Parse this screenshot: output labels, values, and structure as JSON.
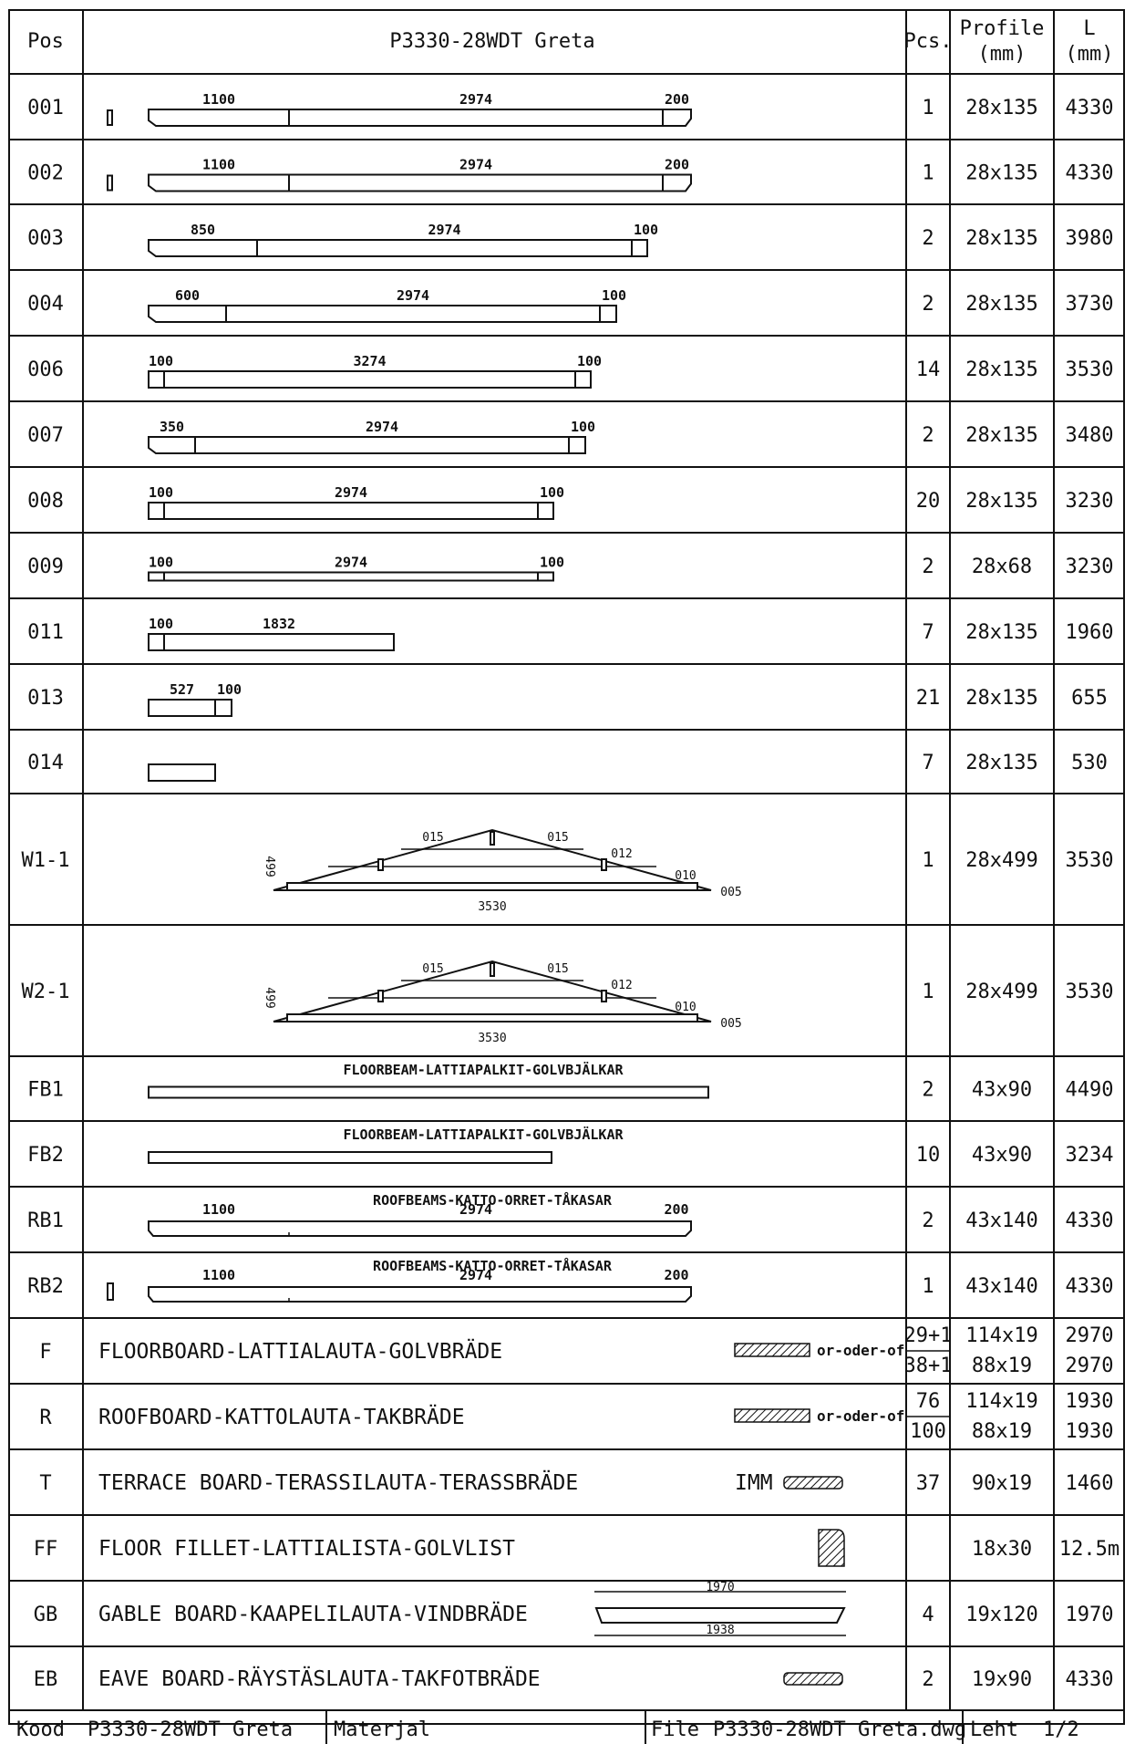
{
  "header": {
    "pos": "Pos",
    "title": "P3330-28WDT Greta",
    "pcs": "Pcs.",
    "profile_line1": "Profile",
    "profile_line2": "(mm)",
    "length_line1": "L",
    "length_line2": "(mm)"
  },
  "rows": [
    {
      "pos": "001",
      "pcs": "1",
      "profile": "28x135",
      "length": "4330",
      "dims": [
        "1100",
        "2974",
        "200"
      ]
    },
    {
      "pos": "002",
      "pcs": "1",
      "profile": "28x135",
      "length": "4330",
      "dims": [
        "1100",
        "2974",
        "200"
      ]
    },
    {
      "pos": "003",
      "pcs": "2",
      "profile": "28x135",
      "length": "3980",
      "dims": [
        "850",
        "2974",
        "100"
      ]
    },
    {
      "pos": "004",
      "pcs": "2",
      "profile": "28x135",
      "length": "3730",
      "dims": [
        "600",
        "2974",
        "100"
      ]
    },
    {
      "pos": "006",
      "pcs": "14",
      "profile": "28x135",
      "length": "3530",
      "dims": [
        "100",
        "3274",
        "100"
      ]
    },
    {
      "pos": "007",
      "pcs": "2",
      "profile": "28x135",
      "length": "3480",
      "dims": [
        "350",
        "2974",
        "100"
      ]
    },
    {
      "pos": "008",
      "pcs": "20",
      "profile": "28x135",
      "length": "3230",
      "dims": [
        "100",
        "2974",
        "100"
      ]
    },
    {
      "pos": "009",
      "pcs": "2",
      "profile": "28x68",
      "length": "3230",
      "dims": [
        "100",
        "2974",
        "100"
      ]
    },
    {
      "pos": "011",
      "pcs": "7",
      "profile": "28x135",
      "length": "1960",
      "dims": [
        "100",
        "1832"
      ]
    },
    {
      "pos": "013",
      "pcs": "21",
      "profile": "28x135",
      "length": "655",
      "dims": [
        "527",
        "100"
      ]
    },
    {
      "pos": "014",
      "pcs": "7",
      "profile": "28x135",
      "length": "530",
      "dims": []
    },
    {
      "pos": "W1-1",
      "pcs": "1",
      "profile": "28x499",
      "length": "3530",
      "truss": {
        "h": "499",
        "w": "3530",
        "a": "015",
        "b": "015",
        "c": "012",
        "d": "010",
        "e": "005"
      }
    },
    {
      "pos": "W2-1",
      "pcs": "1",
      "profile": "28x499",
      "length": "3530",
      "truss": {
        "h": "499",
        "w": "3530",
        "a": "015",
        "b": "015",
        "c": "012",
        "d": "010",
        "e": "005"
      }
    },
    {
      "pos": "FB1",
      "pcs": "2",
      "profile": "43x90",
      "length": "4490",
      "caption": "FLOORBEAM-LATTIAPALKIT-GOLVBJÄLKAR"
    },
    {
      "pos": "FB2",
      "pcs": "10",
      "profile": "43x90",
      "length": "3234",
      "caption": "FLOORBEAM-LATTIAPALKIT-GOLVBJÄLKAR"
    },
    {
      "pos": "RB1",
      "pcs": "2",
      "profile": "43x140",
      "length": "4330",
      "caption": "ROOFBEAMS-KATTO-ORRET-TÅKASAR",
      "dims": [
        "1100",
        "2974",
        "200"
      ]
    },
    {
      "pos": "RB2",
      "pcs": "1",
      "profile": "43x140",
      "length": "4330",
      "caption": "ROOFBEAMS-KATTO-ORRET-TÅKASAR",
      "dims": [
        "1100",
        "2974",
        "200"
      ]
    }
  ],
  "boards": [
    {
      "pos": "F",
      "desc": "FLOORBOARD-LATTIALAUTA-GOLVBRÄDE",
      "note": "or-oder-of",
      "pcs": [
        "29+1",
        "38+1"
      ],
      "profile": [
        "114x19",
        "88x19"
      ],
      "length": [
        "2970",
        "2970"
      ]
    },
    {
      "pos": "R",
      "desc": "ROOFBOARD-KATTOLAUTA-TAKBRÄDE",
      "note": "or-oder-of",
      "pcs": [
        "76",
        "100"
      ],
      "profile": [
        "114x19",
        "88x19"
      ],
      "length": [
        "1930",
        "1930"
      ]
    },
    {
      "pos": "T",
      "desc": "TERRACE BOARD-TERASSILAUTA-TERASSBRÄDE",
      "note": "IMM",
      "pcs": [
        "37"
      ],
      "profile": [
        "90x19"
      ],
      "length": [
        "1460"
      ]
    },
    {
      "pos": "FF",
      "desc": "FLOOR FILLET-LATTIALISTA-GOLVLIST",
      "note": "",
      "pcs": [
        ""
      ],
      "profile": [
        "18x30"
      ],
      "length": [
        "12.5m"
      ]
    },
    {
      "pos": "GB",
      "desc": "GABLE BOARD-KAAPELILAUTA-VINDBRÄDE",
      "note": "",
      "pcs": [
        "4"
      ],
      "profile": [
        "19x120"
      ],
      "length": [
        "1970"
      ],
      "dims": [
        "1970",
        "1938"
      ]
    },
    {
      "pos": "EB",
      "desc": "EAVE BOARD-RÄYSTÄSLAUTA-TAKFOTBRÄDE",
      "note": "",
      "pcs": [
        "2"
      ],
      "profile": [
        "19x90"
      ],
      "length": [
        "4330"
      ]
    }
  ],
  "footer": {
    "kood_label": "Kood",
    "kood_value": "P3330-28WDT Greta",
    "materjal_label": "Materjal",
    "file_label": "File",
    "file_value": "P3330-28WDT Greta.dwg",
    "leht_label": "Leht",
    "leht_value": "1/2"
  },
  "colors": {
    "ink": "#111111",
    "paper": "#ffffff"
  }
}
